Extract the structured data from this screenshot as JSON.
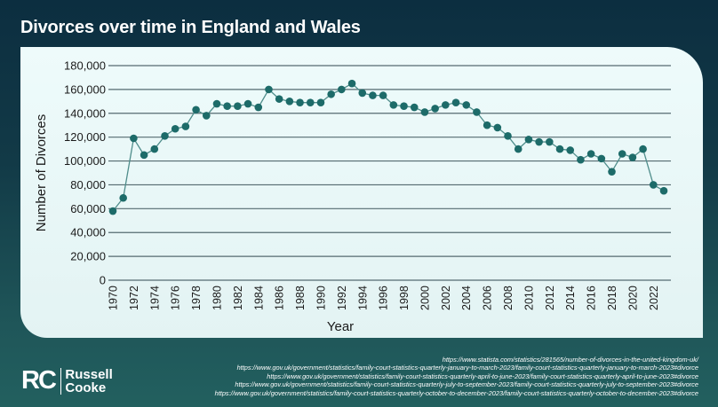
{
  "title": "Divorces over time in England and Wales",
  "chart_data": {
    "type": "line",
    "title": "Divorces over time in England and Wales",
    "xlabel": "Year",
    "ylabel": "Number of Divorces",
    "ylim": [
      0,
      180000
    ],
    "xlim": [
      1970,
      2023
    ],
    "yticks": [
      "0",
      "20,000",
      "40,000",
      "60,000",
      "80,000",
      "100,000",
      "120,000",
      "140,000",
      "160,000",
      "180,000"
    ],
    "xticks": [
      "1970",
      "1972",
      "1974",
      "1976",
      "1978",
      "1980",
      "1982",
      "1984",
      "1986",
      "1988",
      "1990",
      "1992",
      "1994",
      "1996",
      "1998",
      "2000",
      "2002",
      "2004",
      "2006",
      "2008",
      "2010",
      "2012",
      "2014",
      "2016",
      "2018",
      "2020",
      "2022"
    ],
    "grid": "horizontal",
    "color": "#1d6b69",
    "x": [
      1970,
      1971,
      1972,
      1973,
      1974,
      1975,
      1976,
      1977,
      1978,
      1979,
      1980,
      1981,
      1982,
      1983,
      1984,
      1985,
      1986,
      1987,
      1988,
      1989,
      1990,
      1991,
      1992,
      1993,
      1994,
      1995,
      1996,
      1997,
      1998,
      1999,
      2000,
      2001,
      2002,
      2003,
      2004,
      2005,
      2006,
      2007,
      2008,
      2009,
      2010,
      2011,
      2012,
      2013,
      2014,
      2015,
      2016,
      2017,
      2018,
      2019,
      2020,
      2021,
      2022,
      2023
    ],
    "values": [
      58000,
      69000,
      119000,
      105000,
      110000,
      121000,
      127000,
      129000,
      143000,
      138000,
      148000,
      146000,
      146000,
      148000,
      145000,
      160000,
      152000,
      150000,
      149000,
      149000,
      149000,
      156000,
      160000,
      165000,
      157000,
      155000,
      155000,
      147000,
      146000,
      145000,
      141000,
      144000,
      147000,
      149000,
      147000,
      141000,
      130000,
      128000,
      121000,
      110000,
      118000,
      116000,
      116000,
      110000,
      109000,
      101000,
      106000,
      102000,
      91000,
      106000,
      103000,
      110000,
      80000,
      75000
    ]
  },
  "logo": {
    "mark": "RC",
    "line1": "Russell",
    "line2": "Cooke"
  },
  "sources": [
    "https://www.statista.com/statistics/281565/number-of-divorces-in-the-united-kingdom-uk/",
    "https://www.gov.uk/government/statistics/family-court-statistics-quarterly-january-to-march-2023/family-court-statistics-quarterly-january-to-march-2023#divorce",
    "https://www.gov.uk/government/statistics/family-court-statistics-quarterly-april-to-june-2023/family-court-statistics-quarterly-april-to-june-2023#divorce",
    "https://www.gov.uk/government/statistics/family-court-statistics-quarterly-july-to-september-2023/family-court-statistics-quarterly-july-to-september-2023#divorce",
    "https://www.gov.uk/government/statistics/family-court-statistics-quarterly-october-to-december-2023/family-court-statistics-quarterly-october-to-december-2023#divorce"
  ]
}
